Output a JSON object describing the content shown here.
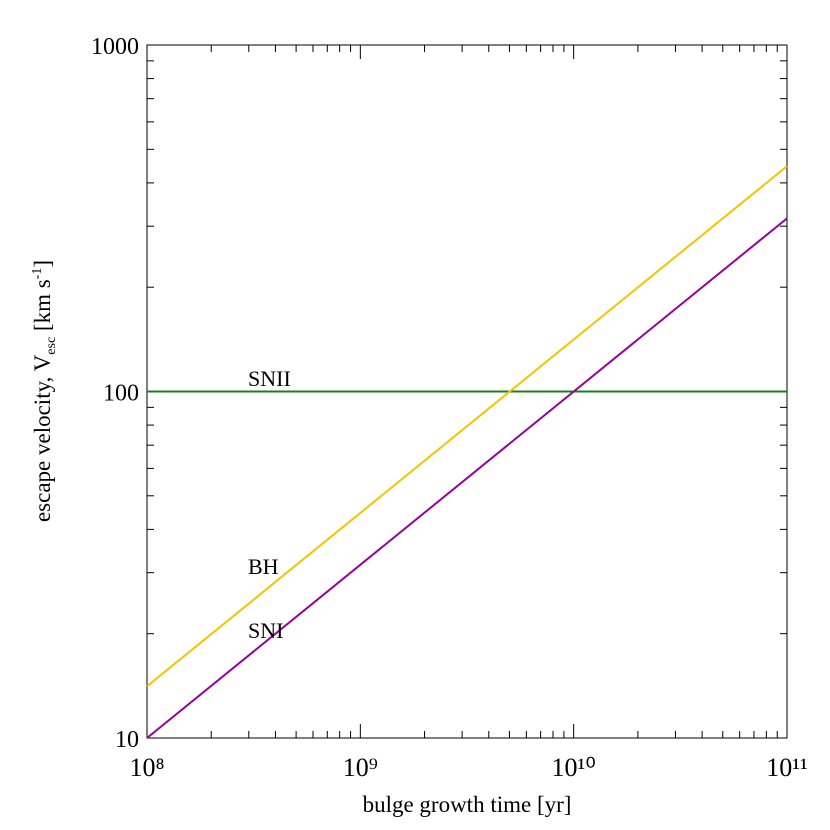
{
  "chart_data": {
    "type": "line",
    "xlabel": "bulge growth time [yr]",
    "ylabel": [
      "escape velocity, V",
      "esc",
      " [km s",
      "-1",
      "]"
    ],
    "x": [
      100000000,
      100000000000
    ],
    "series": [
      {
        "name": "SNII",
        "color": "#1a7f1a",
        "values": [
          100,
          100
        ]
      },
      {
        "name": "BH",
        "color": "#f5c400",
        "values": [
          14.1,
          447
        ]
      },
      {
        "name": "SNI",
        "color": "#990099",
        "values": [
          10,
          316
        ]
      }
    ],
    "xlim": [
      100000000,
      100000000000
    ],
    "ylim": [
      10,
      1000
    ],
    "xticks": [
      {
        "value": 100000000,
        "label": "10⁸"
      },
      {
        "value": 1000000000,
        "label": "10⁹"
      },
      {
        "value": 10000000000,
        "label": "10¹⁰"
      },
      {
        "value": 100000000000,
        "label": "10¹¹"
      }
    ],
    "yticks": [
      10,
      100,
      1000
    ],
    "xscale": "log",
    "yscale": "log"
  }
}
